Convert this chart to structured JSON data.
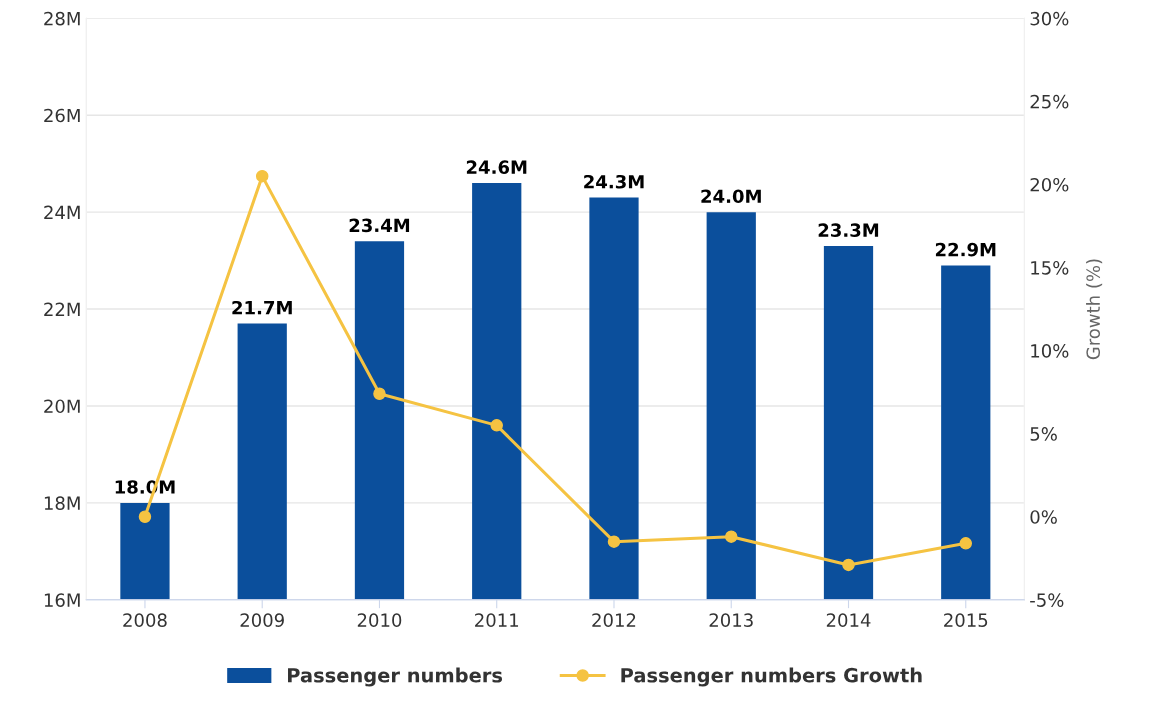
{
  "chart_data": {
    "type": "bar",
    "categories": [
      "2008",
      "2009",
      "2010",
      "2011",
      "2012",
      "2013",
      "2014",
      "2015"
    ],
    "series": [
      {
        "name": "Passenger numbers",
        "color": "#0b4f9c",
        "values": [
          18.0,
          21.7,
          23.4,
          24.6,
          24.3,
          24.0,
          23.3,
          22.9
        ],
        "value_labels": [
          "18.0M",
          "21.7M",
          "23.4M",
          "24.6M",
          "24.3M",
          "24.0M",
          "23.3M",
          "22.9M"
        ]
      },
      {
        "name": "Passenger numbers Growth",
        "type": "line",
        "axis": "y2",
        "color": "#f5c342",
        "marker": "circle",
        "values": [
          0.0,
          20.5,
          7.4,
          5.5,
          -1.5,
          -1.2,
          -2.9,
          -1.6
        ]
      }
    ],
    "ylim": [
      16,
      28
    ],
    "yticks": [
      {
        "value": 16,
        "label": "16M"
      },
      {
        "value": 18,
        "label": "18M"
      },
      {
        "value": 20,
        "label": "20M"
      },
      {
        "value": 22,
        "label": "22M"
      },
      {
        "value": 24,
        "label": "24M"
      },
      {
        "value": 26,
        "label": "26M"
      },
      {
        "value": 28,
        "label": "28M"
      }
    ],
    "y2lim": [
      -5,
      30
    ],
    "y2ticks": [
      {
        "value": -5,
        "label": "-5%"
      },
      {
        "value": 0,
        "label": "0%"
      },
      {
        "value": 5,
        "label": "5%"
      },
      {
        "value": 10,
        "label": "10%"
      },
      {
        "value": 15,
        "label": "15%"
      },
      {
        "value": 20,
        "label": "20%"
      },
      {
        "value": 25,
        "label": "25%"
      },
      {
        "value": 30,
        "label": "30%"
      }
    ],
    "y2label": "Growth (%)",
    "grid": "y",
    "legend": "bottom"
  }
}
